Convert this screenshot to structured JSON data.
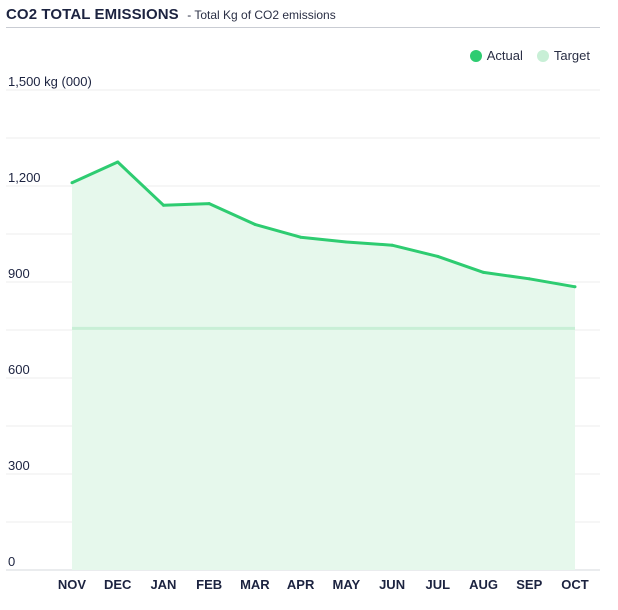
{
  "header": {
    "title": "CO2 TOTAL EMISSIONS",
    "subtitle": "- Total Kg of CO2 emissions"
  },
  "colors": {
    "actual": "#2ecc71",
    "actual_fill": "#e6f8ec",
    "target": "#c8efd6",
    "grid": "#eeeeee"
  },
  "chart_data": {
    "type": "area",
    "title": "CO2 TOTAL EMISSIONS",
    "subtitle": "- Total Kg of CO2 emissions",
    "xlabel": "",
    "ylabel": "",
    "y_unit_label": "1,500 kg (000)",
    "categories": [
      "NOV",
      "DEC",
      "JAN",
      "FEB",
      "MAR",
      "APR",
      "MAY",
      "JUN",
      "JUL",
      "AUG",
      "SEP",
      "OCT"
    ],
    "ylim": [
      0,
      1500
    ],
    "y_ticks": [
      0,
      300,
      600,
      900,
      1200
    ],
    "y_tick_labels": [
      "0",
      "300",
      "600",
      "900",
      "1,200"
    ],
    "series": [
      {
        "name": "Actual",
        "values": [
          1210,
          1275,
          1140,
          1145,
          1080,
          1040,
          1025,
          1015,
          980,
          930,
          910,
          885
        ]
      },
      {
        "name": "Target",
        "values": [
          755,
          755,
          755,
          755,
          755,
          755,
          755,
          755,
          755,
          755,
          755,
          755
        ]
      }
    ],
    "legend": [
      "Actual",
      "Target"
    ],
    "legend_position": "top-right",
    "grid": true
  }
}
